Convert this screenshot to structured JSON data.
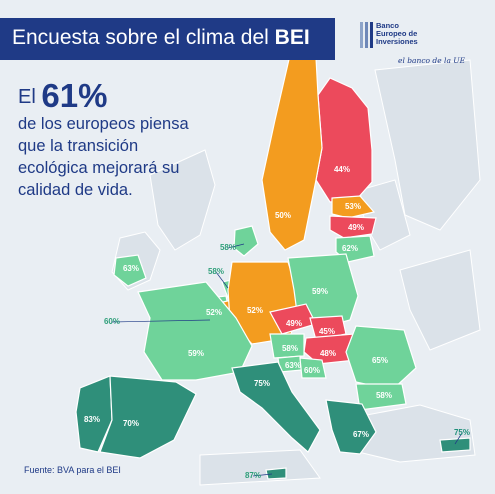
{
  "header": {
    "title_main": "Encuesta sobre el clima del",
    "title_bold": "BEI"
  },
  "logo": {
    "name_line1": "Banco",
    "name_line2": "Europeo de",
    "name_line3": "Inversiones",
    "tagline": "el banco de la UE"
  },
  "headline": {
    "prefix": "El",
    "percent": "61%",
    "line2": "de los europeos piensa",
    "line3": "que la transición",
    "line4": "ecológica mejorará su",
    "line5": "calidad de vida."
  },
  "source": "Fuente: BVA para el BEI",
  "colors": {
    "title_bar": "#1f3a86",
    "high": "#2f8f7a",
    "medium": "#6fd39a",
    "low": "#f39c1f",
    "lowest": "#ec4a5c",
    "non_eu": "#dbe2e9",
    "sea": "#e9eef3"
  },
  "chart_data": {
    "type": "choropleth",
    "title": "Encuesta sobre el clima del BEI",
    "values": [
      {
        "label": "44%",
        "value": 44
      },
      {
        "label": "53%",
        "value": 53
      },
      {
        "label": "49%",
        "value": 49
      },
      {
        "label": "62%",
        "value": 62
      },
      {
        "label": "50%",
        "value": 50
      },
      {
        "label": "58%",
        "value": 58
      },
      {
        "label": "63%",
        "value": 63
      },
      {
        "label": "58%",
        "value": 58
      },
      {
        "label": "60%",
        "value": 60
      },
      {
        "label": "52%",
        "value": 52
      },
      {
        "label": "52%",
        "value": 52
      },
      {
        "label": "59%",
        "value": 59
      },
      {
        "label": "49%",
        "value": 49
      },
      {
        "label": "45%",
        "value": 45
      },
      {
        "label": "48%",
        "value": 48
      },
      {
        "label": "58%",
        "value": 58
      },
      {
        "label": "63%",
        "value": 63
      },
      {
        "label": "60%",
        "value": 60
      },
      {
        "label": "59%",
        "value": 59
      },
      {
        "label": "75%",
        "value": 75
      },
      {
        "label": "65%",
        "value": 65
      },
      {
        "label": "58%",
        "value": 58
      },
      {
        "label": "83%",
        "value": 83
      },
      {
        "label": "70%",
        "value": 70
      },
      {
        "label": "67%",
        "value": 67
      },
      {
        "label": "75%",
        "value": 75
      },
      {
        "label": "87%",
        "value": 87
      }
    ]
  }
}
